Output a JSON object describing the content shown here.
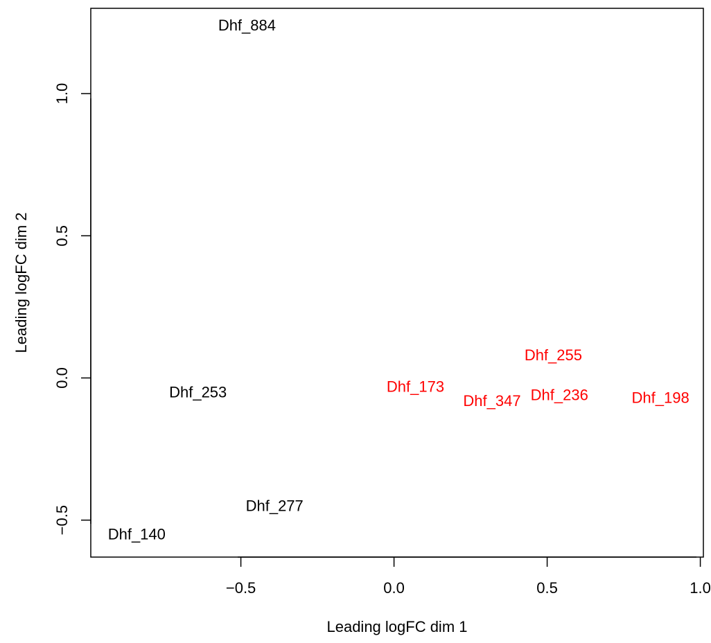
{
  "chart_data": {
    "type": "scatter",
    "title": "",
    "xlabel": "Leading logFC dim 1",
    "ylabel": "Leading logFC dim 2",
    "xlim": [
      -0.99,
      1.01
    ],
    "ylim": [
      -0.63,
      1.3
    ],
    "xticks": [
      {
        "value": -0.5,
        "label": "−0.5"
      },
      {
        "value": 0.0,
        "label": "0.0"
      },
      {
        "value": 0.5,
        "label": "0.5"
      },
      {
        "value": 1.0,
        "label": "1.0"
      }
    ],
    "yticks": [
      {
        "value": -0.5,
        "label": "−0.5"
      },
      {
        "value": 0.0,
        "label": "0.0"
      },
      {
        "value": 0.5,
        "label": "0.5"
      },
      {
        "value": 1.0,
        "label": "1.0"
      }
    ],
    "grid": false,
    "legend": "none",
    "series": [
      {
        "color": "#000000",
        "points": [
          {
            "label": "Dhf_884",
            "x": -0.48,
            "y": 1.24
          },
          {
            "label": "Dhf_253",
            "x": -0.64,
            "y": -0.05
          },
          {
            "label": "Dhf_277",
            "x": -0.39,
            "y": -0.45
          },
          {
            "label": "Dhf_140",
            "x": -0.84,
            "y": -0.55
          }
        ]
      },
      {
        "color": "#ff0000",
        "points": [
          {
            "label": "Dhf_255",
            "x": 0.52,
            "y": 0.08
          },
          {
            "label": "Dhf_173",
            "x": 0.07,
            "y": -0.03
          },
          {
            "label": "Dhf_236",
            "x": 0.54,
            "y": -0.06
          },
          {
            "label": "Dhf_347",
            "x": 0.32,
            "y": -0.08
          },
          {
            "label": "Dhf_198",
            "x": 0.87,
            "y": -0.07
          }
        ]
      }
    ]
  }
}
